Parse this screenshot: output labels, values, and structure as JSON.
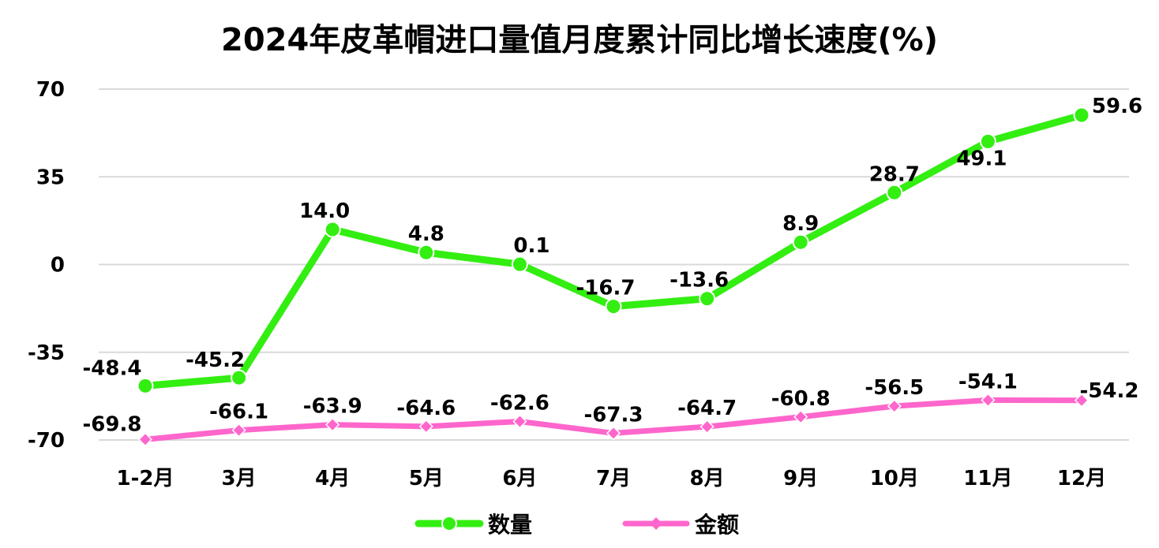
{
  "chart_data": {
    "type": "line",
    "title": "2024年皮革帽进口量值月度累计同比增长速度(%)",
    "categories": [
      "1-2月",
      "3月",
      "4月",
      "5月",
      "6月",
      "7月",
      "8月",
      "9月",
      "10月",
      "11月",
      "12月"
    ],
    "series": [
      {
        "name": "数量",
        "color": "#33ee11",
        "marker": "circle",
        "values": [
          -48.4,
          -45.2,
          14.0,
          4.8,
          0.1,
          -16.7,
          -13.6,
          8.9,
          28.7,
          49.1,
          59.6
        ],
        "labels": [
          "-48.4",
          "-45.2",
          "14.0",
          "4.8",
          "0.1",
          "-16.7",
          "-13.6",
          "8.9",
          "28.7",
          "49.1",
          "59.6"
        ]
      },
      {
        "name": "金额",
        "color": "#ff66cc",
        "marker": "diamond",
        "values": [
          -69.8,
          -66.1,
          -63.9,
          -64.6,
          -62.6,
          -67.3,
          -64.7,
          -60.8,
          -56.5,
          -54.1,
          -54.2
        ],
        "labels": [
          "-69.8",
          "-66.1",
          "-63.9",
          "-64.6",
          "-62.6",
          "-67.3",
          "-64.7",
          "-60.8",
          "-56.5",
          "-54.1",
          "-54.2"
        ]
      }
    ],
    "yticks": [
      "70",
      "35",
      "0",
      "-35",
      "-70"
    ],
    "ylim": [
      -70,
      70
    ],
    "grid": true,
    "legend": "bottom-center"
  }
}
